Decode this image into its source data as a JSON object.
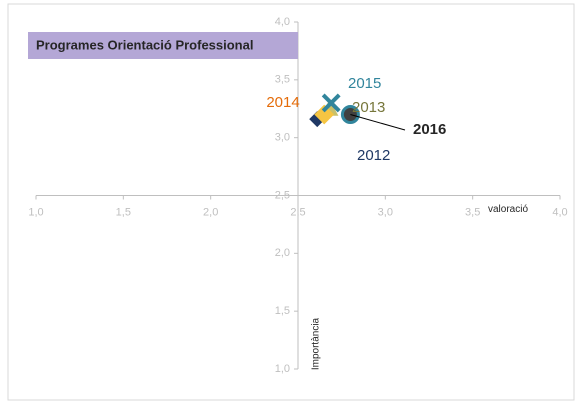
{
  "chart_data": {
    "type": "scatter",
    "title": "Programes Orientació Professional",
    "x_label": "valoració",
    "y_label": "Importància",
    "xlim": [
      1,
      4
    ],
    "ylim": [
      1,
      4
    ],
    "xticks": [
      {
        "value": 1,
        "label": "1,0"
      },
      {
        "value": 1.5,
        "label": "1,5"
      },
      {
        "value": 2,
        "label": "2,0"
      },
      {
        "value": 2.5,
        "label": "2,5"
      },
      {
        "value": 3,
        "label": "3,0"
      },
      {
        "value": 3.5,
        "label": "3,5"
      },
      {
        "value": 4,
        "label": "4,0"
      }
    ],
    "yticks": [
      {
        "value": 1,
        "label": "1,0"
      },
      {
        "value": 1.5,
        "label": "1,5"
      },
      {
        "value": 2,
        "label": "2,0"
      },
      {
        "value": 2.5,
        "label": "2,5"
      },
      {
        "value": 3,
        "label": "3,0"
      },
      {
        "value": 3.5,
        "label": "3,5"
      },
      {
        "value": 4,
        "label": "4,0"
      }
    ],
    "axis_cross": [
      2.5,
      2.5
    ],
    "series": [
      {
        "name": "2012",
        "color": "#1f3864",
        "marker": "diamond",
        "x": [
          2.61
        ],
        "values": [
          3.16
        ]
      },
      {
        "name": "2013",
        "color": "#76763a",
        "marker": "triangle",
        "x": [
          2.68
        ],
        "values": [
          3.25
        ]
      },
      {
        "name": "2014",
        "color": "#e46c0a",
        "marker": "square",
        "x": [
          2.65
        ],
        "values": [
          3.2
        ]
      },
      {
        "name": "2015",
        "color": "#31859c",
        "marker": "x",
        "x": [
          2.69
        ],
        "values": [
          3.3
        ]
      },
      {
        "name": "2016",
        "color": "#262626",
        "marker": "circle",
        "x": [
          2.8
        ],
        "values": [
          3.2
        ]
      }
    ]
  }
}
